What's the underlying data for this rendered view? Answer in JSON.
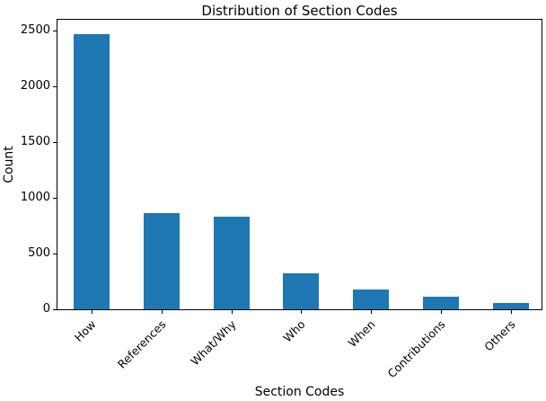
{
  "chart_data": {
    "type": "bar",
    "title": "Distribution of Section Codes",
    "xlabel": "Section Codes",
    "ylabel": "Count",
    "categories": [
      "How",
      "References",
      "What/Why",
      "Who",
      "When",
      "Contributions",
      "Others"
    ],
    "values": [
      2470,
      865,
      830,
      320,
      180,
      115,
      60
    ],
    "ylim": [
      0,
      2600
    ],
    "yticks": [
      0,
      500,
      1000,
      1500,
      2000,
      2500
    ],
    "bar_color": "#1f77b4",
    "axis_color": "#000000",
    "grid": false,
    "legend": null,
    "x_tick_rotation_deg": 45
  }
}
